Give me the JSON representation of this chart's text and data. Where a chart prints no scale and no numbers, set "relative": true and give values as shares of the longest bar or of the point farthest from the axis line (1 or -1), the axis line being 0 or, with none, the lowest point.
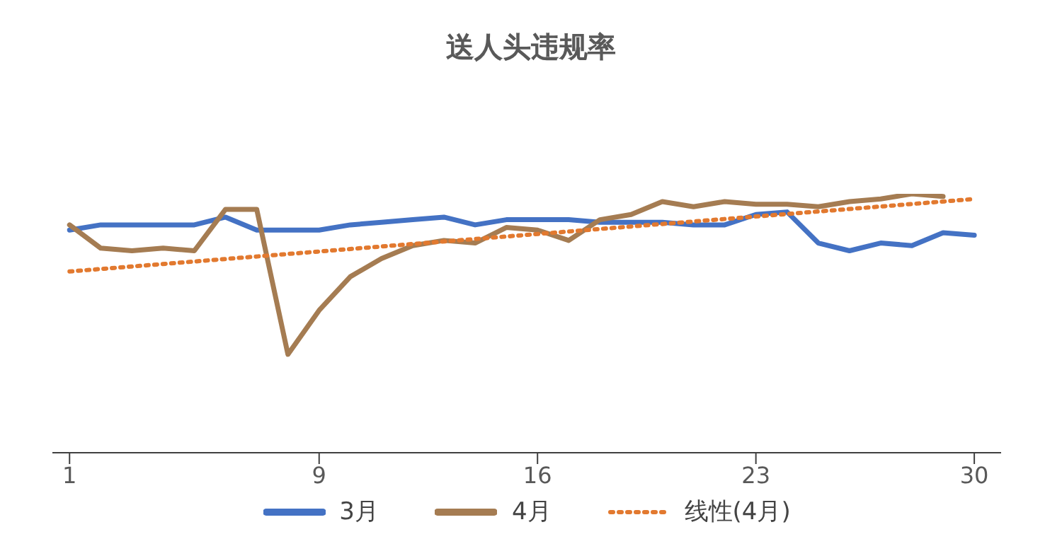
{
  "chart_data": {
    "type": "line",
    "title": "送人头违规率",
    "relative": true,
    "xlim": [
      0.45,
      30.86
    ],
    "xticks": [
      1,
      9,
      16,
      23,
      30
    ],
    "x": [
      1,
      2,
      3,
      4,
      5,
      6,
      7,
      8,
      9,
      10,
      11,
      12,
      13,
      14,
      15,
      16,
      17,
      18,
      19,
      20,
      21,
      22,
      23,
      24,
      25,
      26,
      27,
      28,
      29,
      30
    ],
    "series": [
      {
        "name": "3月",
        "color": "#4472c4",
        "values": [
          0.86,
          0.88,
          0.88,
          0.88,
          0.88,
          0.91,
          0.86,
          0.86,
          0.86,
          0.88,
          0.89,
          0.9,
          0.91,
          0.88,
          0.9,
          0.9,
          0.9,
          0.89,
          0.89,
          0.89,
          0.88,
          0.88,
          0.92,
          0.93,
          0.81,
          0.78,
          0.81,
          0.8,
          0.85,
          0.84
        ]
      },
      {
        "name": "4月",
        "color": "#a57c52",
        "x": [
          1,
          2,
          3,
          4,
          5,
          6,
          7,
          8,
          9,
          10,
          11,
          12,
          13,
          14,
          15,
          16,
          17,
          18,
          19,
          20,
          21,
          22,
          23,
          24,
          25,
          26,
          27,
          28,
          29
        ],
        "values": [
          0.88,
          0.79,
          0.78,
          0.79,
          0.78,
          0.94,
          0.94,
          0.38,
          0.55,
          0.68,
          0.75,
          0.8,
          0.82,
          0.81,
          0.87,
          0.86,
          0.82,
          0.9,
          0.92,
          0.97,
          0.95,
          0.97,
          0.96,
          0.96,
          0.95,
          0.97,
          0.98,
          1,
          0.99
        ]
      },
      {
        "name": "线性(4月)",
        "color": "#e2792f",
        "type": "line",
        "line_style": "dotted",
        "x": [
          1,
          30
        ],
        "values": [
          0.7,
          0.98
        ]
      }
    ],
    "marker": "none",
    "legend": "bottom"
  }
}
